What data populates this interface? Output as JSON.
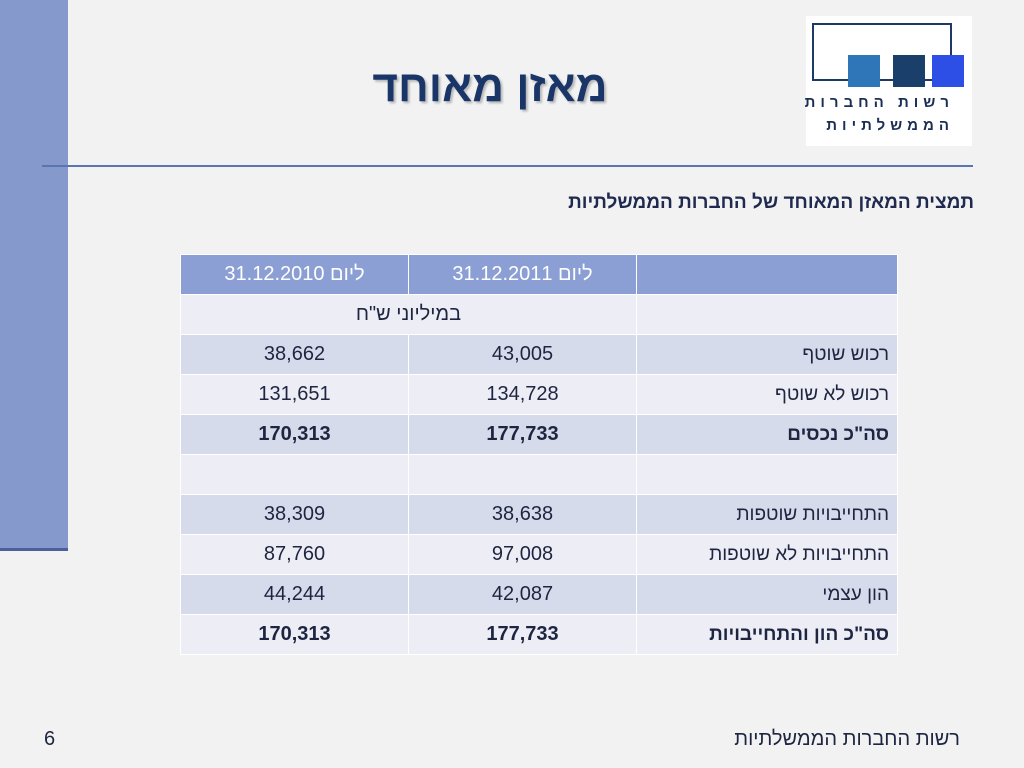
{
  "slide": {
    "title": "מאזן מאוחד",
    "subtitle": "תמצית המאזן המאוחד של החברות הממשלתיות",
    "footer": "רשות החברות הממשלתיות",
    "page_number": "6"
  },
  "logo": {
    "line1": "רשות החברות",
    "line2": "הממשלתיות"
  },
  "table": {
    "header": {
      "corner": "",
      "col2011": "ליום 31.12.2011",
      "col2010": "ליום 31.12.2010"
    },
    "units_row": {
      "label": "",
      "units": "במיליוני ש\"ח"
    },
    "rows": [
      {
        "label": "רכוש שוטף",
        "v2011": "43,005",
        "v2010": "38,662"
      },
      {
        "label": "רכוש לא שוטף",
        "v2011": "134,728",
        "v2010": "131,651"
      },
      {
        "label": "סה\"כ נכסים",
        "v2011": "177,733",
        "v2010": "170,313"
      },
      {
        "label": "",
        "v2011": "",
        "v2010": ""
      },
      {
        "label": "התחייבויות שוטפות",
        "v2011": "38,638",
        "v2010": "38,309"
      },
      {
        "label": "התחייבויות לא שוטפות",
        "v2011": "97,008",
        "v2010": "87,760"
      },
      {
        "label": "הון עצמי",
        "v2011": "42,087",
        "v2010": "44,244"
      },
      {
        "label": "סה\"כ הון והתחייבויות",
        "v2011": "177,733",
        "v2010": "170,313"
      }
    ]
  },
  "colors": {
    "title": "#1a3668",
    "side_bar": "#8699cc",
    "table_header": "#8b9fd4",
    "row_odd": "#d6dbeb",
    "row_even": "#ecedf5"
  }
}
